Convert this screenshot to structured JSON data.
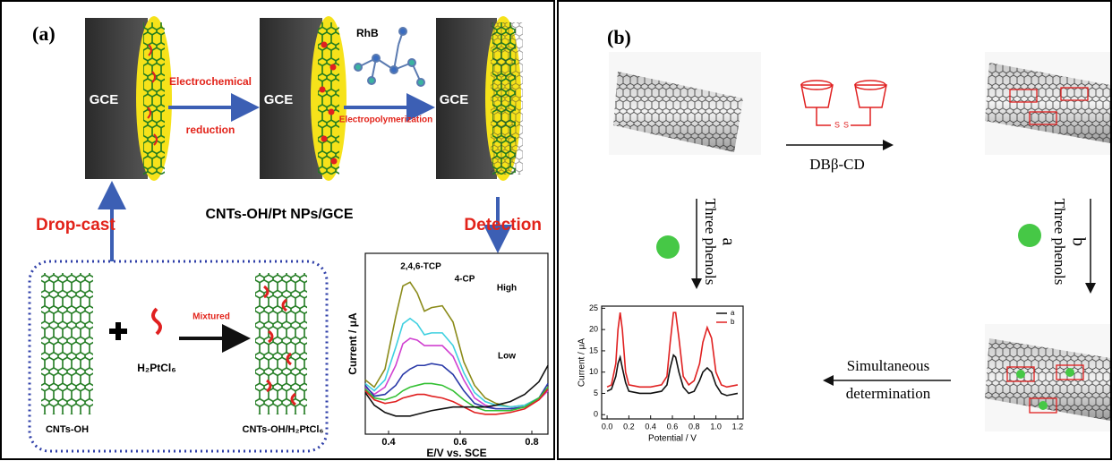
{
  "panel_a": {
    "label": "(a)",
    "electrode_labels": [
      "GCE",
      "GCE",
      "GCE"
    ],
    "step_1": [
      "Electrochemical",
      "reduction"
    ],
    "molecule": "RhB",
    "step_2": "Electropolymerization",
    "electrode_name": "CNTs-OH/Pt NPs/GCE",
    "drop_cast": "Drop-cast",
    "detection": "Detection",
    "mixing": "Mixtured",
    "precursor": "H₂PtCl₆",
    "cnt_label": "CNTs-OH",
    "mixture_label": "CNTs-OH/H₂PtCl₆"
  },
  "panel_b": {
    "label": "(b)",
    "linker_atoms": [
      "S",
      "S"
    ],
    "reagent": "DBβ-CD",
    "step_a": "Three phenols",
    "route_a": "a",
    "step_b": "Three phenols",
    "route_b": "b",
    "step_c": [
      "Simultaneous",
      "determination"
    ]
  },
  "chart_data": [
    {
      "type": "line",
      "x_label": "E/V vs. SCE",
      "y_label": "Current / μA",
      "x": [
        0.335,
        0.36,
        0.39,
        0.42,
        0.44,
        0.46,
        0.48,
        0.5,
        0.52,
        0.55,
        0.58,
        0.61,
        0.64,
        0.67,
        0.7,
        0.74,
        0.78,
        0.82,
        0.845
      ],
      "xlim": [
        0.335,
        0.845
      ],
      "xticks": [
        0.4,
        0.6,
        0.8
      ],
      "ylim": [
        0,
        10
      ],
      "series": [
        {
          "color": "#8b8b1a",
          "values": [
            3.0,
            2.6,
            3.6,
            6.5,
            8.2,
            8.4,
            7.8,
            6.8,
            7.0,
            7.1,
            6.2,
            4.0,
            2.7,
            2.0,
            1.7,
            1.5,
            1.6,
            2.0,
            2.6
          ]
        },
        {
          "color": "#3fd0e0",
          "values": [
            2.8,
            2.4,
            3.0,
            4.8,
            6.1,
            6.4,
            6.1,
            5.5,
            5.6,
            5.6,
            4.9,
            3.4,
            2.3,
            1.8,
            1.6,
            1.5,
            1.6,
            2.0,
            2.5
          ]
        },
        {
          "color": "#d040d0",
          "values": [
            2.6,
            2.2,
            2.6,
            3.8,
            5.0,
            5.3,
            5.2,
            4.9,
            4.9,
            4.9,
            4.3,
            3.0,
            2.0,
            1.6,
            1.4,
            1.4,
            1.5,
            1.9,
            2.4
          ]
        },
        {
          "color": "#2a3aa8",
          "values": [
            2.7,
            2.1,
            2.2,
            2.7,
            3.3,
            3.6,
            3.8,
            3.8,
            3.9,
            3.8,
            3.3,
            2.4,
            1.7,
            1.5,
            1.4,
            1.4,
            1.5,
            2.0,
            2.8
          ]
        },
        {
          "color": "#33c033",
          "values": [
            2.5,
            2.0,
            1.9,
            2.1,
            2.4,
            2.6,
            2.7,
            2.8,
            2.8,
            2.7,
            2.4,
            1.9,
            1.5,
            1.3,
            1.3,
            1.3,
            1.5,
            2.0,
            2.6
          ]
        },
        {
          "color": "#e02020",
          "values": [
            2.4,
            1.9,
            1.7,
            1.8,
            2.0,
            2.1,
            2.2,
            2.2,
            2.1,
            2.0,
            1.8,
            1.5,
            1.2,
            1.1,
            1.1,
            1.2,
            1.4,
            1.9,
            2.5
          ]
        },
        {
          "color": "#111111",
          "values": [
            2.3,
            1.6,
            1.2,
            1.0,
            1.0,
            1.0,
            1.1,
            1.2,
            1.3,
            1.4,
            1.5,
            1.5,
            1.5,
            1.5,
            1.6,
            1.8,
            2.2,
            2.9,
            3.8
          ]
        }
      ],
      "annotations": [
        "2,4,6-TCP",
        "4-CP",
        "High",
        "Low"
      ]
    },
    {
      "type": "line",
      "x_label": "Potential / V",
      "y_label": "Current / μA",
      "x": [
        0,
        0.04,
        0.08,
        0.1,
        0.12,
        0.14,
        0.17,
        0.2,
        0.3,
        0.4,
        0.5,
        0.55,
        0.58,
        0.61,
        0.63,
        0.66,
        0.7,
        0.75,
        0.8,
        0.85,
        0.88,
        0.92,
        0.96,
        1.0,
        1.05,
        1.1,
        1.2
      ],
      "xlim": [
        -0.05,
        1.25
      ],
      "xticks": [
        {
          "value": 0,
          "label": "0.0"
        },
        0.2,
        0.4,
        0.6,
        0.8,
        {
          "value": 1,
          "label": "1.0"
        },
        1.2
      ],
      "ylim": [
        -1,
        25.5
      ],
      "yticks": [
        0,
        5,
        10,
        15,
        20,
        25
      ],
      "legend": "upper right",
      "series": [
        {
          "name": "a",
          "color": "#111111",
          "values": [
            5.5,
            6,
            9,
            12,
            13.5,
            11,
            7.5,
            5.5,
            5,
            5,
            5.5,
            7,
            11,
            14,
            13.5,
            10,
            6.5,
            5,
            5.5,
            8,
            10,
            11,
            10,
            7,
            5,
            4.5,
            5
          ]
        },
        {
          "name": "b",
          "color": "#e02020",
          "values": [
            6.5,
            7,
            12,
            20,
            24,
            20,
            10,
            7,
            6.5,
            6.5,
            7,
            9,
            17,
            24,
            24,
            18,
            9,
            7,
            8,
            12,
            17,
            20.5,
            18,
            10,
            7,
            6.5,
            7
          ]
        }
      ]
    }
  ]
}
